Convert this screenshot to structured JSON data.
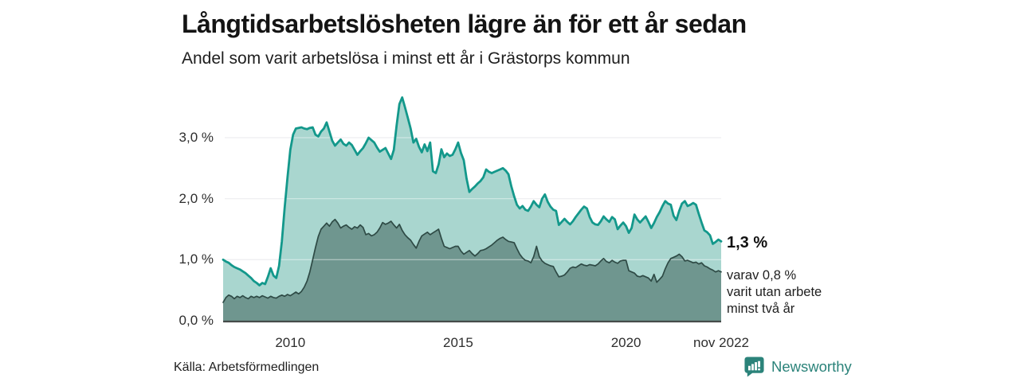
{
  "header": {
    "title": "Långtidsarbetslösheten lägre än för ett år sedan",
    "subtitle": "Andel som varit arbetslösa i minst ett år i Grästorps kommun"
  },
  "chart_data": {
    "type": "area",
    "title": "Långtidsarbetslösheten lägre än för ett år sedan",
    "subtitle": "Andel som varit arbetslösa i minst ett år i Grästorps kommun",
    "region": "Grästorps kommun",
    "unit": "%",
    "frequency": "monthly",
    "x_start": "jan 2008",
    "x_end": "nov 2022",
    "ylim": [
      0,
      3.8
    ],
    "grid": "horizontal",
    "legend_position": "none",
    "y_ticks": [
      {
        "label": "0,0 %",
        "value": 0
      },
      {
        "label": "1,0 %",
        "value": 1
      },
      {
        "label": "2,0 %",
        "value": 2
      },
      {
        "label": "3,0 %",
        "value": 3
      }
    ],
    "x_ticks": [
      {
        "label": "2010",
        "month": 24
      },
      {
        "label": "2015",
        "month": 84
      },
      {
        "label": "2020",
        "month": 144
      },
      {
        "label": "nov 2022",
        "month": 178
      }
    ],
    "colors": {
      "line1": "#13988b",
      "fill1": "#a9d6cf",
      "line2": "#2e4a45",
      "fill2": "#6f968f",
      "grid": "#e3e4e8",
      "grid_overlay": "rgba(255,255,255,0.42)",
      "baseline": "#454b49"
    },
    "series": [
      {
        "name": "Andel arbetslösa minst ett år",
        "latest_value": 1.3,
        "latest_label": "1,3 %",
        "values": [
          1.0,
          0.97,
          0.95,
          0.91,
          0.88,
          0.86,
          0.84,
          0.81,
          0.78,
          0.74,
          0.7,
          0.65,
          0.62,
          0.58,
          0.62,
          0.6,
          0.72,
          0.86,
          0.74,
          0.7,
          0.9,
          1.3,
          1.85,
          2.35,
          2.8,
          3.05,
          3.15,
          3.16,
          3.17,
          3.15,
          3.14,
          3.16,
          3.17,
          3.05,
          3.02,
          3.1,
          3.15,
          3.25,
          3.1,
          2.95,
          2.87,
          2.92,
          2.97,
          2.9,
          2.87,
          2.92,
          2.88,
          2.8,
          2.72,
          2.78,
          2.83,
          2.91,
          3.0,
          2.96,
          2.92,
          2.84,
          2.77,
          2.8,
          2.83,
          2.74,
          2.65,
          2.8,
          3.2,
          3.55,
          3.66,
          3.5,
          3.33,
          3.15,
          2.92,
          2.98,
          2.85,
          2.76,
          2.89,
          2.78,
          2.92,
          2.45,
          2.42,
          2.56,
          2.81,
          2.68,
          2.74,
          2.7,
          2.72,
          2.81,
          2.92,
          2.75,
          2.63,
          2.33,
          2.11,
          2.16,
          2.2,
          2.25,
          2.29,
          2.35,
          2.48,
          2.44,
          2.42,
          2.44,
          2.46,
          2.48,
          2.5,
          2.46,
          2.4,
          2.2,
          2.04,
          1.9,
          1.84,
          1.88,
          1.82,
          1.8,
          1.87,
          1.96,
          1.9,
          1.86,
          2.0,
          2.07,
          1.95,
          1.87,
          1.82,
          1.8,
          1.57,
          1.62,
          1.67,
          1.62,
          1.58,
          1.63,
          1.7,
          1.76,
          1.82,
          1.87,
          1.84,
          1.7,
          1.61,
          1.58,
          1.57,
          1.63,
          1.71,
          1.66,
          1.62,
          1.7,
          1.66,
          1.5,
          1.56,
          1.61,
          1.55,
          1.44,
          1.52,
          1.74,
          1.66,
          1.61,
          1.66,
          1.71,
          1.62,
          1.52,
          1.6,
          1.7,
          1.78,
          1.88,
          1.96,
          1.92,
          1.9,
          1.72,
          1.65,
          1.8,
          1.92,
          1.96,
          1.88,
          1.9,
          1.93,
          1.9,
          1.75,
          1.61,
          1.48,
          1.45,
          1.4,
          1.26,
          1.29,
          1.33,
          1.3
        ]
      },
      {
        "name": "varav utan arbete minst två år",
        "latest_value": 0.8,
        "latest_label": "0,8 %",
        "values": [
          0.3,
          0.38,
          0.42,
          0.4,
          0.36,
          0.4,
          0.38,
          0.41,
          0.38,
          0.36,
          0.4,
          0.38,
          0.4,
          0.38,
          0.41,
          0.39,
          0.37,
          0.4,
          0.38,
          0.37,
          0.4,
          0.42,
          0.4,
          0.43,
          0.41,
          0.44,
          0.47,
          0.44,
          0.48,
          0.55,
          0.65,
          0.8,
          1.0,
          1.2,
          1.38,
          1.5,
          1.55,
          1.6,
          1.55,
          1.62,
          1.66,
          1.6,
          1.52,
          1.55,
          1.57,
          1.53,
          1.5,
          1.54,
          1.52,
          1.57,
          1.53,
          1.41,
          1.43,
          1.39,
          1.41,
          1.45,
          1.52,
          1.61,
          1.58,
          1.6,
          1.63,
          1.57,
          1.52,
          1.58,
          1.48,
          1.41,
          1.36,
          1.32,
          1.25,
          1.19,
          1.3,
          1.39,
          1.42,
          1.45,
          1.41,
          1.44,
          1.47,
          1.5,
          1.35,
          1.22,
          1.2,
          1.18,
          1.2,
          1.22,
          1.22,
          1.14,
          1.09,
          1.12,
          1.15,
          1.1,
          1.06,
          1.1,
          1.15,
          1.16,
          1.18,
          1.21,
          1.24,
          1.28,
          1.32,
          1.35,
          1.37,
          1.33,
          1.3,
          1.29,
          1.28,
          1.18,
          1.09,
          1.03,
          0.99,
          0.98,
          0.95,
          1.05,
          1.22,
          1.05,
          0.98,
          0.94,
          0.92,
          0.9,
          0.89,
          0.8,
          0.72,
          0.73,
          0.75,
          0.8,
          0.86,
          0.88,
          0.87,
          0.9,
          0.93,
          0.91,
          0.9,
          0.92,
          0.91,
          0.9,
          0.93,
          0.98,
          1.02,
          0.97,
          0.95,
          0.99,
          0.96,
          0.94,
          0.98,
          0.99,
          0.99,
          0.82,
          0.8,
          0.78,
          0.73,
          0.72,
          0.74,
          0.72,
          0.7,
          0.65,
          0.76,
          0.63,
          0.68,
          0.73,
          0.85,
          0.95,
          1.02,
          1.04,
          1.06,
          1.09,
          1.05,
          0.98,
          0.99,
          0.97,
          0.95,
          0.96,
          0.93,
          0.95,
          0.9,
          0.88,
          0.85,
          0.83,
          0.8,
          0.82,
          0.8
        ]
      }
    ]
  },
  "annotations": {
    "latest_value_label": "1,3 %",
    "note_lines": [
      "varav 0,8 %",
      "varit utan arbete",
      "minst två år"
    ]
  },
  "footer": {
    "source": "Källa: Arbetsförmedlingen",
    "brand": "Newsworthy"
  }
}
